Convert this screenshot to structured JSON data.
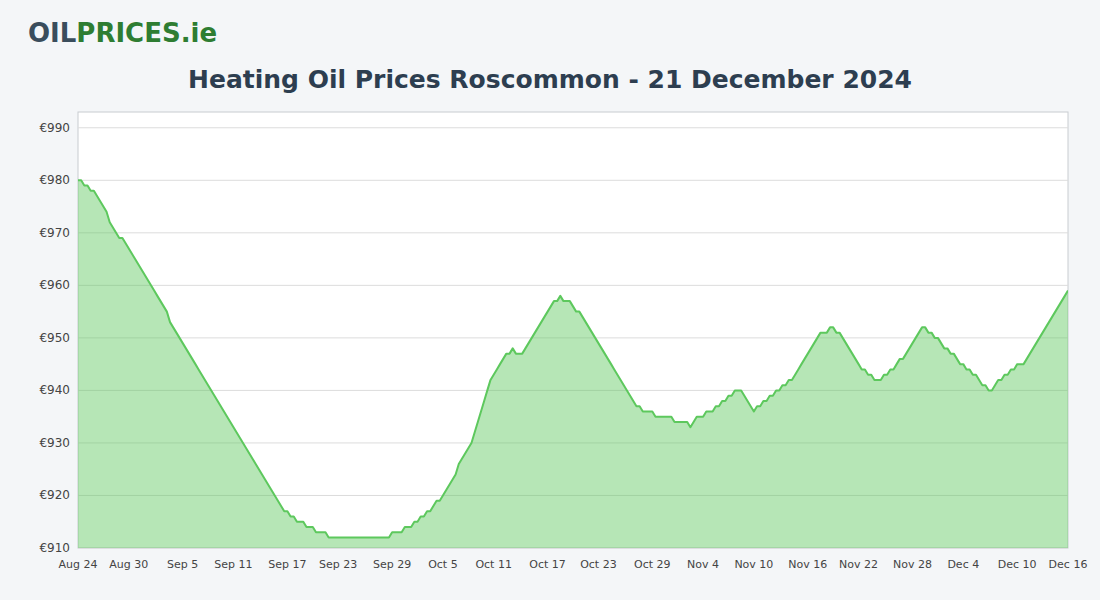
{
  "chart_data": {
    "type": "area",
    "title": "Heating Oil Prices Roscommon - 21 December 2024",
    "annotations": [
      {
        "text": "OIL",
        "color": "#3a4d5c"
      },
      {
        "text": "PRICES",
        "color": "#2e7d32"
      },
      {
        "text": ".ie",
        "color": "#2e7d32"
      }
    ],
    "color": "#5dc85d",
    "grid": true,
    "ylim": [
      910,
      993
    ],
    "yticks": [
      {
        "value": 910,
        "label": "€910"
      },
      {
        "value": 920,
        "label": "€920"
      },
      {
        "value": 930,
        "label": "€930"
      },
      {
        "value": 940,
        "label": "€940"
      },
      {
        "value": 950,
        "label": "€950"
      },
      {
        "value": 960,
        "label": "€960"
      },
      {
        "value": 970,
        "label": "€970"
      },
      {
        "value": 980,
        "label": "€980"
      },
      {
        "value": 990,
        "label": "€990"
      }
    ],
    "categories": [
      "Aug 24",
      null,
      null,
      null,
      null,
      null,
      null,
      null,
      null,
      null,
      null,
      null,
      null,
      null,
      null,
      null,
      "Aug 30",
      null,
      null,
      null,
      null,
      null,
      null,
      null,
      null,
      null,
      null,
      null,
      null,
      null,
      null,
      null,
      null,
      "Sep 5",
      null,
      null,
      null,
      null,
      null,
      null,
      null,
      null,
      null,
      null,
      null,
      null,
      null,
      null,
      null,
      "Sep 11",
      null,
      null,
      null,
      null,
      null,
      null,
      null,
      null,
      null,
      null,
      null,
      null,
      null,
      null,
      null,
      null,
      "Sep 17",
      null,
      null,
      null,
      null,
      null,
      null,
      null,
      null,
      null,
      null,
      null,
      null,
      null,
      null,
      null,
      "Sep 23",
      null,
      null,
      null,
      null,
      null,
      null,
      null,
      null,
      null,
      null,
      null,
      null,
      null,
      null,
      null,
      null,
      "Sep 29",
      null,
      null,
      null,
      null,
      null,
      null,
      null,
      null,
      null,
      null,
      null,
      null,
      null,
      null,
      null,
      "Oct 5",
      null,
      null,
      null,
      null,
      null,
      null,
      null,
      null,
      null,
      null,
      null,
      null,
      null,
      null,
      null,
      "Oct 11",
      null,
      null,
      null,
      null,
      null,
      null,
      null,
      null,
      null,
      null,
      null,
      null,
      null,
      null,
      null,
      null,
      "Oct 17",
      null,
      null,
      null,
      null,
      null,
      null,
      null,
      null,
      null,
      null,
      null,
      null,
      null,
      null,
      null,
      "Oct 23",
      null,
      null,
      null,
      null,
      null,
      null,
      null,
      null,
      null,
      null,
      null,
      null,
      null,
      null,
      null,
      null,
      "Oct 29",
      null,
      null,
      null,
      null,
      null,
      null,
      null,
      null,
      null,
      null,
      null,
      null,
      null,
      null,
      null,
      "Nov 4",
      null,
      null,
      null,
      null,
      null,
      null,
      null,
      null,
      null,
      null,
      null,
      null,
      null,
      null,
      null,
      "Nov 10",
      null,
      null,
      null,
      null,
      null,
      null,
      null,
      null,
      null,
      null,
      null,
      null,
      null,
      null,
      null,
      null,
      "Nov 16",
      null,
      null,
      null,
      null,
      null,
      null,
      null,
      null,
      null,
      null,
      null,
      null,
      null,
      null,
      null,
      "Nov 22",
      null,
      null,
      null,
      null,
      null,
      null,
      null,
      null,
      null,
      null,
      null,
      null,
      null,
      null,
      null,
      null,
      "Nov 28",
      null,
      null,
      null,
      null,
      null,
      null,
      null,
      null,
      null,
      null,
      null,
      null,
      null,
      null,
      null,
      "Dec 4",
      null,
      null,
      null,
      null,
      null,
      null,
      null,
      null,
      null,
      null,
      null,
      null,
      null,
      null,
      null,
      null,
      "Dec 10",
      null,
      null,
      null,
      null,
      null,
      null,
      null,
      null,
      null,
      null,
      null,
      null,
      null,
      null,
      null,
      "Dec 16"
    ],
    "values": [
      980,
      980,
      979,
      979,
      978,
      978,
      977,
      976,
      975,
      974,
      972,
      971,
      970,
      969,
      969,
      968,
      967,
      966,
      965,
      964,
      963,
      962,
      961,
      960,
      959,
      958,
      957,
      956,
      955,
      953,
      952,
      951,
      950,
      949,
      948,
      947,
      946,
      945,
      944,
      943,
      942,
      941,
      940,
      939,
      938,
      937,
      936,
      935,
      934,
      933,
      932,
      931,
      930,
      929,
      928,
      927,
      926,
      925,
      924,
      923,
      922,
      921,
      920,
      919,
      918,
      917,
      917,
      916,
      916,
      915,
      915,
      915,
      914,
      914,
      914,
      913,
      913,
      913,
      913,
      912,
      912,
      912,
      912,
      912,
      912,
      912,
      912,
      912,
      912,
      912,
      912,
      912,
      912,
      912,
      912,
      912,
      912,
      912,
      912,
      913,
      913,
      913,
      913,
      914,
      914,
      914,
      915,
      915,
      916,
      916,
      917,
      917,
      918,
      919,
      919,
      920,
      921,
      922,
      923,
      924,
      926,
      927,
      928,
      929,
      930,
      932,
      934,
      936,
      938,
      940,
      942,
      943,
      944,
      945,
      946,
      947,
      947,
      948,
      947,
      947,
      947,
      948,
      949,
      950,
      951,
      952,
      953,
      954,
      955,
      956,
      957,
      957,
      958,
      957,
      957,
      957,
      956,
      955,
      955,
      954,
      953,
      952,
      951,
      950,
      949,
      948,
      947,
      946,
      945,
      944,
      943,
      942,
      941,
      940,
      939,
      938,
      937,
      937,
      936,
      936,
      936,
      936,
      935,
      935,
      935,
      935,
      935,
      935,
      934,
      934,
      934,
      934,
      934,
      933,
      934,
      935,
      935,
      935,
      936,
      936,
      936,
      937,
      937,
      938,
      938,
      939,
      939,
      940,
      940,
      940,
      939,
      938,
      937,
      936,
      937,
      937,
      938,
      938,
      939,
      939,
      940,
      940,
      941,
      941,
      942,
      942,
      943,
      944,
      945,
      946,
      947,
      948,
      949,
      950,
      951,
      951,
      951,
      952,
      952,
      951,
      951,
      950,
      949,
      948,
      947,
      946,
      945,
      944,
      944,
      943,
      943,
      942,
      942,
      942,
      943,
      943,
      944,
      944,
      945,
      946,
      946,
      947,
      948,
      949,
      950,
      951,
      952,
      952,
      951,
      951,
      950,
      950,
      949,
      948,
      948,
      947,
      947,
      946,
      945,
      945,
      944,
      944,
      943,
      943,
      942,
      941,
      941,
      940,
      940,
      941,
      942,
      942,
      943,
      943,
      944,
      944,
      945,
      945,
      945,
      946,
      947,
      948,
      949,
      950,
      951,
      952,
      953,
      954,
      955,
      956,
      957,
      958,
      959
    ]
  }
}
